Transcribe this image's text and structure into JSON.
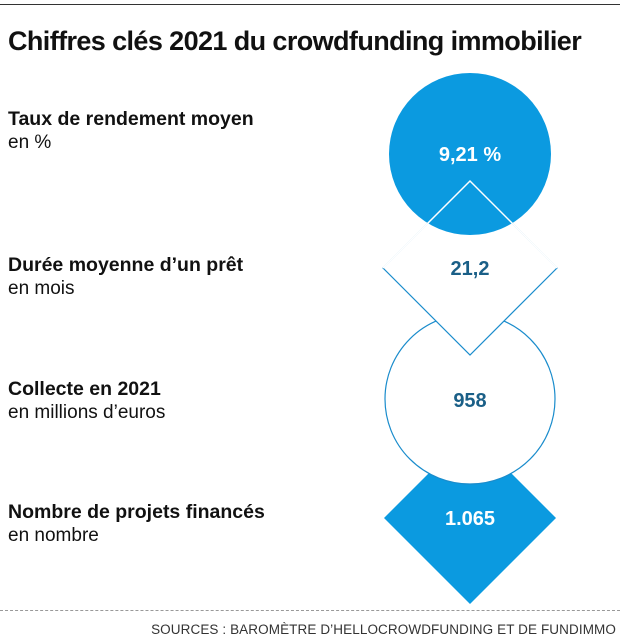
{
  "title": "Chiffres clés 2021 du crowdfunding immobilier",
  "colors": {
    "accent": "#0b9ae0",
    "outline": "#1a8ccc",
    "value_dark": "#1a5f87",
    "value_light": "#ffffff"
  },
  "items": [
    {
      "label": "Taux de rendement moyen",
      "unit": "en %",
      "value": "9,21 %",
      "shape": "circle",
      "style": "filled"
    },
    {
      "label": "Durée moyenne d’un prêt",
      "unit": "en mois",
      "value": "21,2",
      "shape": "diamond",
      "style": "outline"
    },
    {
      "label": "Collecte en 2021",
      "unit": "en millions d’euros",
      "value": "958",
      "shape": "circle",
      "style": "outline"
    },
    {
      "label": "Nombre de projets financés",
      "unit": "en nombre",
      "value": "1.065",
      "shape": "diamond",
      "style": "filled"
    }
  ],
  "source": "SOURCES : BAROMÈTRE D’HELLOCROWDFUNDING ET DE FUNDIMMO"
}
